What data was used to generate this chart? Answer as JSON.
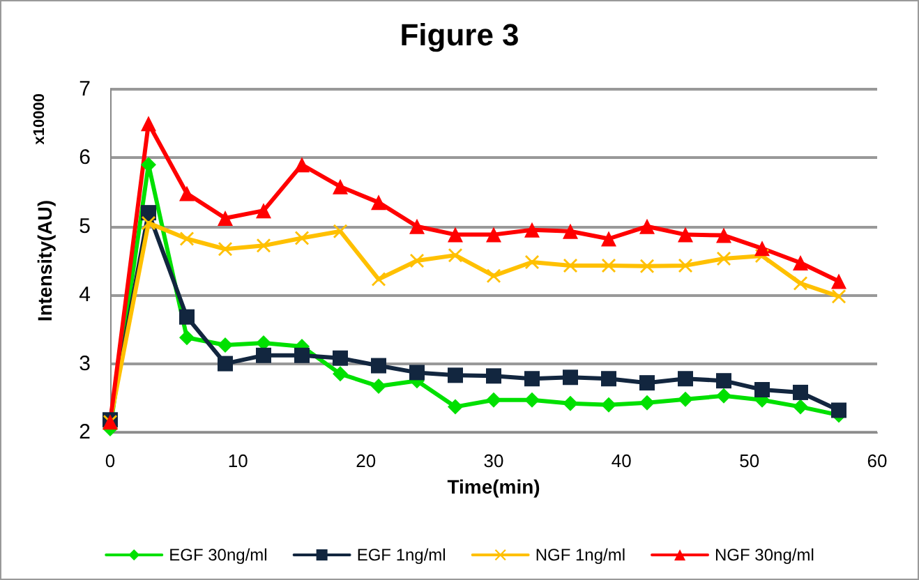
{
  "chart_data": {
    "type": "line",
    "title": "Figure 3",
    "xlabel": "Time(min)",
    "ylabel": "Intensity(AU)",
    "annotations": [
      "x10000"
    ],
    "x": [
      0,
      3,
      6,
      9,
      12,
      15,
      18,
      21,
      24,
      27,
      30,
      33,
      36,
      39,
      42,
      45,
      48,
      51,
      54,
      57
    ],
    "series": [
      {
        "name": "EGF 30ng/ml",
        "color": "#00e000",
        "marker": "diamond",
        "values": [
          2.05,
          5.9,
          3.38,
          3.27,
          3.3,
          3.25,
          2.85,
          2.67,
          2.75,
          2.37,
          2.47,
          2.47,
          2.42,
          2.4,
          2.43,
          2.48,
          2.53,
          2.47,
          2.37,
          2.25
        ]
      },
      {
        "name": "EGF 1ng/ml",
        "color": "#12263f",
        "marker": "square",
        "values": [
          2.18,
          5.2,
          3.68,
          3.0,
          3.12,
          3.12,
          3.08,
          2.97,
          2.87,
          2.83,
          2.82,
          2.78,
          2.8,
          2.78,
          2.72,
          2.78,
          2.75,
          2.62,
          2.58,
          2.32
        ]
      },
      {
        "name": "NGF 1ng/ml",
        "color": "#ffc000",
        "marker": "cross",
        "values": [
          2.15,
          5.05,
          4.82,
          4.67,
          4.72,
          4.83,
          4.93,
          4.23,
          4.5,
          4.58,
          4.28,
          4.48,
          4.43,
          4.43,
          4.42,
          4.43,
          4.53,
          4.57,
          4.17,
          3.98
        ]
      },
      {
        "name": "NGF 30ng/ml",
        "color": "#ff0000",
        "marker": "triangle",
        "values": [
          2.15,
          6.5,
          5.48,
          5.12,
          5.23,
          5.9,
          5.58,
          5.35,
          5.0,
          4.88,
          4.88,
          4.95,
          4.93,
          4.82,
          5.0,
          4.88,
          4.87,
          4.68,
          4.47,
          4.2
        ]
      }
    ],
    "xlim": [
      0,
      60
    ],
    "xticks": [
      0,
      10,
      20,
      30,
      40,
      50,
      60
    ],
    "ylim": [
      2,
      7
    ],
    "yticks": [
      2,
      3,
      4,
      5,
      6,
      7
    ],
    "grid": "y",
    "legend": "bottom",
    "line_style": "solid"
  }
}
